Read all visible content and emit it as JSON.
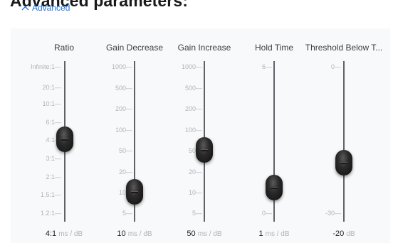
{
  "heading": "Advanced parameters:",
  "advanced_toggle": {
    "label": "Advanced"
  },
  "sliders": [
    {
      "id": "ratio",
      "title": "Ratio",
      "ticks": [
        "Infinite:1",
        "20:1",
        "10:1",
        "6:1",
        "4:1",
        "3:1",
        "2:1",
        "1.5:1",
        "1.2:1"
      ],
      "value": "4:1",
      "unit": "ms / dB"
    },
    {
      "id": "gain-decrease",
      "title": "Gain Decrease",
      "ticks": [
        "1000",
        "500",
        "200",
        "100",
        "50",
        "20",
        "10",
        "5"
      ],
      "value": "10",
      "unit": "ms / dB"
    },
    {
      "id": "gain-increase",
      "title": "Gain Increase",
      "ticks": [
        "1000",
        "500",
        "200",
        "100",
        "50",
        "20",
        "10",
        "5"
      ],
      "value": "50",
      "unit": "ms / dB"
    },
    {
      "id": "hold-time",
      "title": "Hold Time",
      "ticks": [
        "6",
        "0"
      ],
      "value": "1",
      "unit": "ms / dB"
    },
    {
      "id": "threshold-below",
      "title": "Threshold Below T...",
      "ticks": [
        "0",
        "-30"
      ],
      "value": "-20",
      "unit": "dB"
    }
  ]
}
